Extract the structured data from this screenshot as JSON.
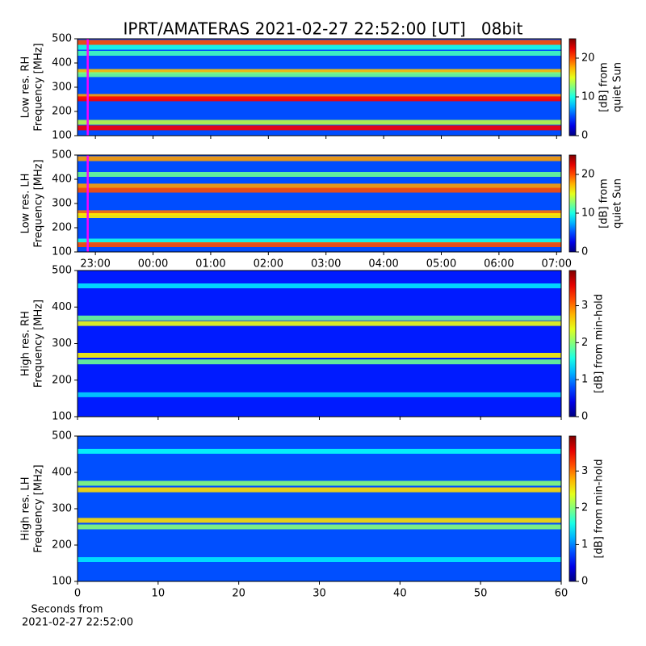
{
  "title": "IPRT/AMATERAS 2021-02-27 22:52:00 [UT]   08bit",
  "chart_data": [
    {
      "type": "heatmap",
      "colormap": "jet",
      "ylabel": [
        "Low res. RH",
        "Frequency [MHz]"
      ],
      "colorbar_label": [
        "[dB] from",
        "quiet Sun"
      ],
      "xlim": [
        22.69,
        31.08
      ],
      "xticks": [
        23,
        24,
        25,
        26,
        27,
        28,
        29,
        30,
        31
      ],
      "ylim": [
        100,
        500
      ],
      "yticks": [
        100,
        200,
        300,
        400,
        500
      ],
      "clim": [
        0,
        25
      ],
      "cticks": [
        0,
        10,
        20
      ],
      "background": 5,
      "marker_x": 22.867,
      "marker_color": "#ff00ff",
      "bands": [
        {
          "freq": 485,
          "level": 20
        },
        {
          "freq": 465,
          "level": 10
        },
        {
          "freq": 440,
          "level": 11
        },
        {
          "freq": 365,
          "level": 17
        },
        {
          "freq": 352,
          "level": 12
        },
        {
          "freq": 262,
          "level": 18
        },
        {
          "freq": 252,
          "level": 22
        },
        {
          "freq": 155,
          "level": 14
        },
        {
          "freq": 132,
          "level": 22
        }
      ]
    },
    {
      "type": "heatmap",
      "colormap": "jet",
      "ylabel": [
        "Low res. LH",
        "Frequency [MHz]"
      ],
      "colorbar_label": [
        "[dB] from",
        "quiet Sun"
      ],
      "xlim": [
        22.69,
        31.08
      ],
      "xticks": [
        {
          "value": 23,
          "label": "23:00"
        },
        {
          "value": 24,
          "label": "00:00"
        },
        {
          "value": 25,
          "label": "01:00"
        },
        {
          "value": 26,
          "label": "02:00"
        },
        {
          "value": 27,
          "label": "03:00"
        },
        {
          "value": 28,
          "label": "04:00"
        },
        {
          "value": 29,
          "label": "05:00"
        },
        {
          "value": 30,
          "label": "06:00"
        },
        {
          "value": 31,
          "label": "07:00"
        }
      ],
      "ylim": [
        100,
        500
      ],
      "yticks": [
        100,
        200,
        300,
        400,
        500
      ],
      "clim": [
        0,
        25
      ],
      "cticks": [
        0,
        10,
        20
      ],
      "background": 5,
      "marker_x": 22.867,
      "marker_color": "#ff00ff",
      "bands": [
        {
          "freq": 485,
          "level": 18
        },
        {
          "freq": 420,
          "level": 12
        },
        {
          "freq": 372,
          "level": 18
        },
        {
          "freq": 355,
          "level": 20
        },
        {
          "freq": 262,
          "level": 19
        },
        {
          "freq": 250,
          "level": 16
        },
        {
          "freq": 145,
          "level": 10
        },
        {
          "freq": 130,
          "level": 20
        }
      ]
    },
    {
      "type": "heatmap",
      "colormap": "jet",
      "ylabel": [
        "High res. RH",
        "Frequency [MHz]"
      ],
      "colorbar_label": [
        "[dB] from min-hold"
      ],
      "xlim": [
        0,
        60
      ],
      "xticks": [
        0,
        10,
        20,
        30,
        40,
        50,
        60
      ],
      "ylim": [
        100,
        500
      ],
      "yticks": [
        100,
        200,
        300,
        400,
        500
      ],
      "clim": [
        0,
        3.95
      ],
      "cticks": [
        0,
        1,
        2,
        3
      ],
      "background": 0.6,
      "bands": [
        {
          "freq": 458,
          "level": 1.4
        },
        {
          "freq": 370,
          "level": 1.9
        },
        {
          "freq": 355,
          "level": 2.4
        },
        {
          "freq": 268,
          "level": 2.5
        },
        {
          "freq": 250,
          "level": 1.9
        },
        {
          "freq": 160,
          "level": 1.3
        }
      ]
    },
    {
      "type": "heatmap",
      "colormap": "jet",
      "ylabel": [
        "High res. LH",
        "Frequency [MHz]"
      ],
      "colorbar_label": [
        "[dB] from min-hold"
      ],
      "xlim": [
        0,
        60
      ],
      "xticks": [
        0,
        10,
        20,
        30,
        40,
        50,
        60
      ],
      "ylim": [
        100,
        500
      ],
      "yticks": [
        100,
        200,
        300,
        400,
        500
      ],
      "clim": [
        0,
        3.95
      ],
      "cticks": [
        0,
        1,
        2,
        3
      ],
      "background": 0.8,
      "xlabel": [
        "Seconds from",
        "2021-02-27 22:52:00"
      ],
      "bands": [
        {
          "freq": 458,
          "level": 1.5
        },
        {
          "freq": 370,
          "level": 2.0
        },
        {
          "freq": 352,
          "level": 2.6
        },
        {
          "freq": 268,
          "level": 2.6
        },
        {
          "freq": 250,
          "level": 2.0
        },
        {
          "freq": 160,
          "level": 1.4
        }
      ]
    }
  ]
}
